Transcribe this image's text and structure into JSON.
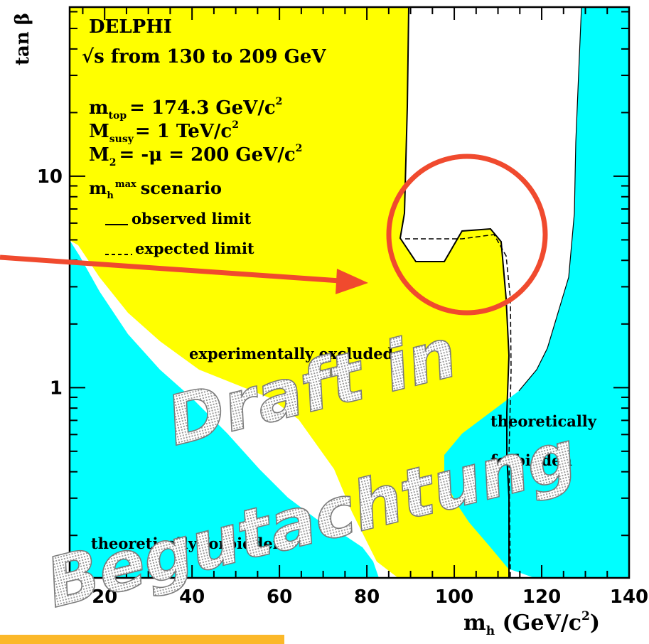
{
  "chart_data": {
    "type": "area",
    "title_lines": [
      "DELPHI",
      "√s from 130 to 209 GeV",
      "m",
      "top",
      "= 174.3 GeV/c",
      "2",
      "M",
      "susy",
      "= 1 TeV/c",
      "2",
      "M",
      "2",
      "= -μ = 200 GeV/c",
      "2",
      "m",
      "h",
      "max",
      "scenario"
    ],
    "legend": [
      "observed limit",
      "expected limit"
    ],
    "xlabel_parts": [
      "m",
      "h",
      " (GeV/c",
      "2",
      ")"
    ],
    "ylabel": "tan β",
    "x_ticks": [
      "20",
      "40",
      "60",
      "80",
      "100",
      "120",
      "140"
    ],
    "y_ticks": [
      "1",
      "10"
    ],
    "xlim": [
      12,
      140
    ],
    "ylim_log10": [
      -0.9,
      1.8
    ],
    "y_scale": "log",
    "regions": {
      "experimentally_excluded": "experimentally excluded",
      "theoretically_forbidden_left": "theoretically forbidden",
      "theoretically_forbidden_right": [
        "theoretically",
        "forbidden"
      ]
    },
    "colors": {
      "excluded": "#ffff00",
      "forbidden": "#00ffff",
      "annotation": "#f04a2e",
      "banner": "#fbb829"
    },
    "watermark": [
      "Draft in",
      "Begutachtung"
    ]
  }
}
